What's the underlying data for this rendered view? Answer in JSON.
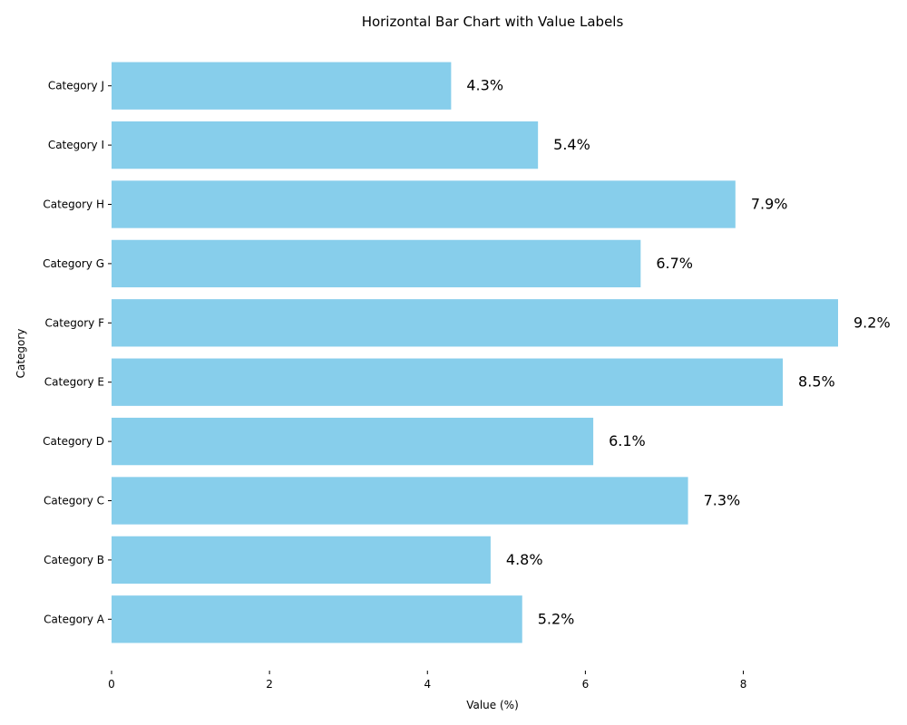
{
  "chart_data": {
    "type": "bar",
    "orientation": "horizontal",
    "title": "Horizontal Bar Chart with Value Labels",
    "xlabel": "Value (%)",
    "ylabel": "Category",
    "categories": [
      "Category A",
      "Category B",
      "Category C",
      "Category D",
      "Category E",
      "Category F",
      "Category G",
      "Category H",
      "Category I",
      "Category J"
    ],
    "values": [
      5.2,
      4.8,
      7.3,
      6.1,
      8.5,
      9.2,
      6.7,
      7.9,
      5.4,
      4.3
    ],
    "value_labels": [
      "5.2%",
      "4.8%",
      "7.3%",
      "6.1%",
      "8.5%",
      "9.2%",
      "6.7%",
      "7.9%",
      "5.4%",
      "4.3%"
    ],
    "xticks": [
      0,
      2,
      4,
      6,
      8
    ],
    "xtick_labels": [
      "0",
      "2",
      "4",
      "6",
      "8"
    ],
    "xlim": [
      0,
      9.2
    ],
    "grid": false,
    "legend": false,
    "bar_color": "#87ceeb"
  }
}
